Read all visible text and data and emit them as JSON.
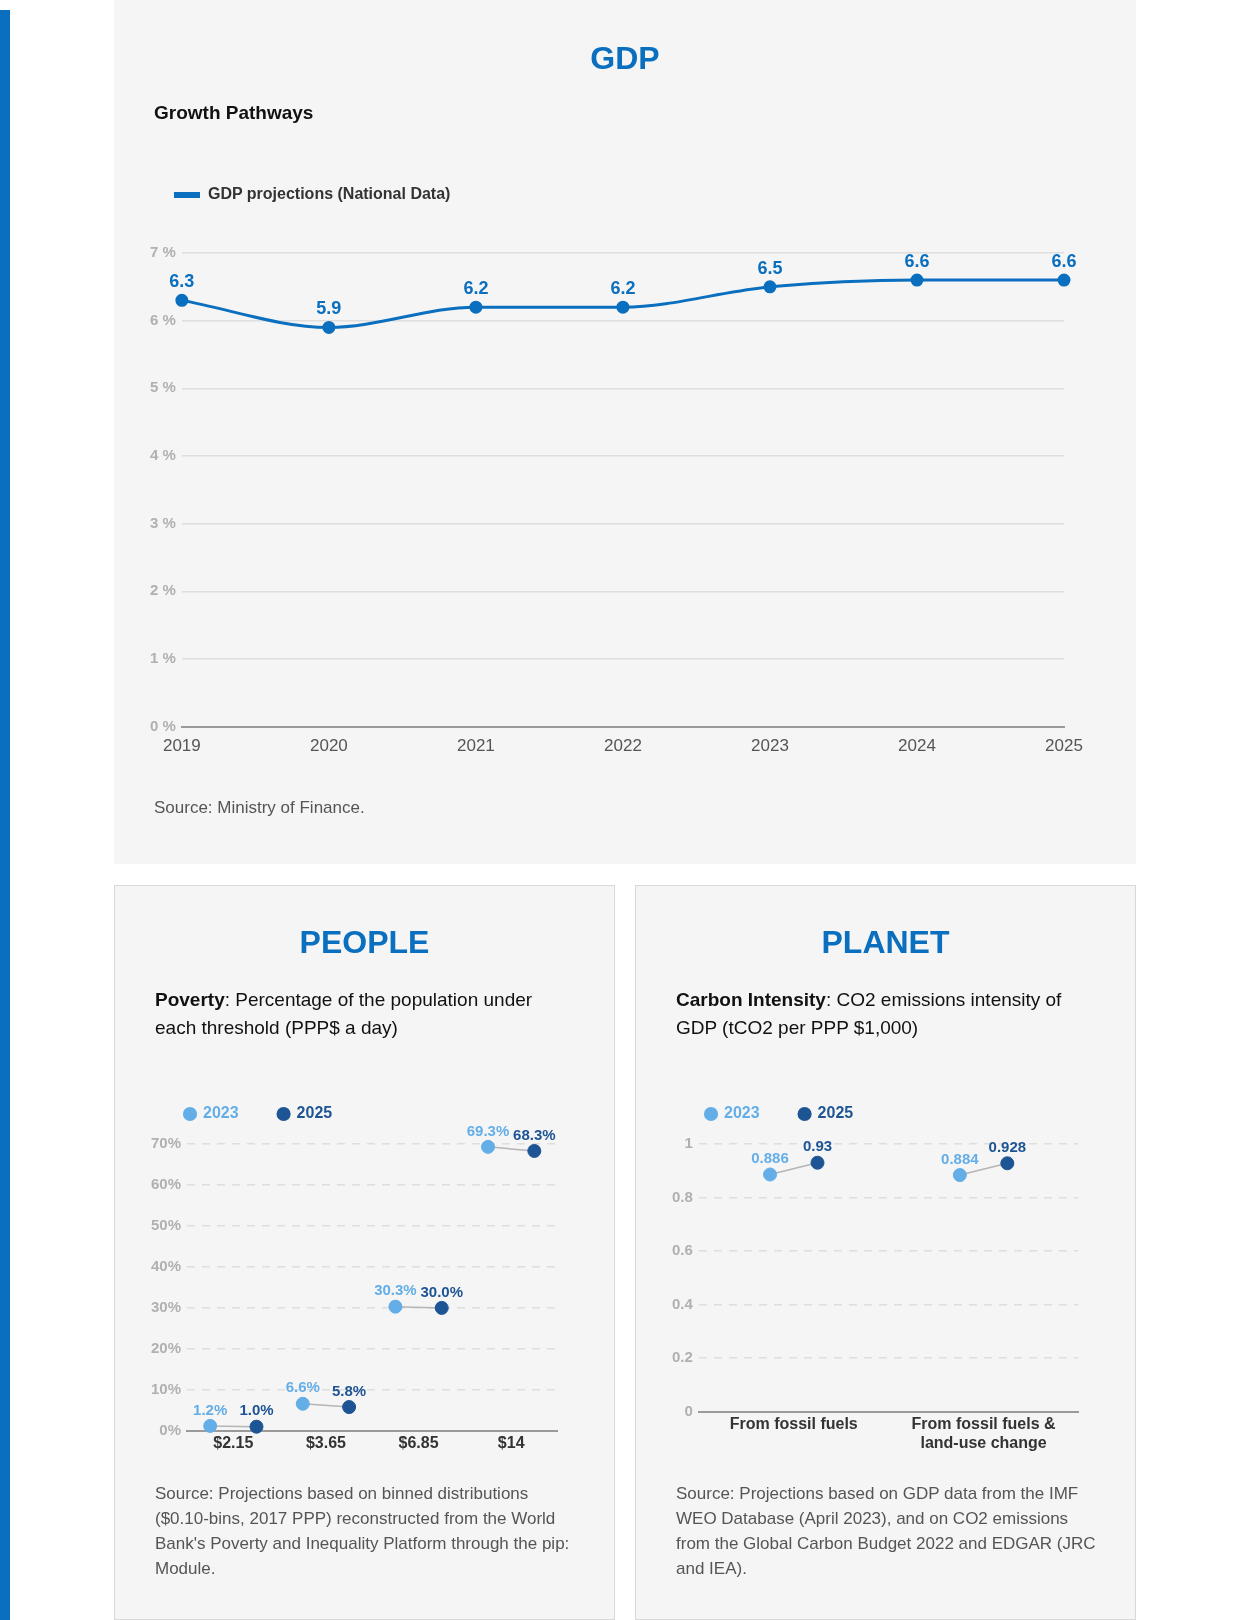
{
  "chart_data": [
    {
      "type": "line",
      "title": "GDP",
      "subtitle": "Growth Pathways",
      "categories": [
        "2019",
        "2020",
        "2021",
        "2022",
        "2023",
        "2024",
        "2025"
      ],
      "series": [
        {
          "name": "GDP projections (National Data)",
          "color": "#0a6fbf",
          "values": [
            6.3,
            5.9,
            6.2,
            6.2,
            6.5,
            6.6,
            6.6
          ]
        }
      ],
      "ylim": [
        0,
        7
      ],
      "yticks": [
        {
          "value": 0,
          "label": "0 %"
        },
        {
          "value": 1,
          "label": "1 %"
        },
        {
          "value": 2,
          "label": "2 %"
        },
        {
          "value": 3,
          "label": "3 %"
        },
        {
          "value": 4,
          "label": "4 %"
        },
        {
          "value": 5,
          "label": "5 %"
        },
        {
          "value": 6,
          "label": "6 %"
        },
        {
          "value": 7,
          "label": "7 %"
        }
      ],
      "grid": "y",
      "legend": "top left",
      "marker": "circle",
      "data_labels": true,
      "annotations": [
        "Source: Ministry of Finance."
      ]
    },
    {
      "type": "scatter",
      "title": "PEOPLE",
      "subtitle": "Poverty: Percentage of the population under each threshold (PPP$ a day)",
      "categories": [
        "$2.15",
        "$3.65",
        "$6.85",
        "$14"
      ],
      "series": [
        {
          "name": "2023",
          "color": "#64aee8",
          "values": [
            1.2,
            6.6,
            30.3,
            69.3
          ],
          "value_labels": [
            "1.2%",
            "6.6%",
            "30.3%",
            "69.3%"
          ]
        },
        {
          "name": "2025",
          "color": "#1d5494",
          "values": [
            1.0,
            5.8,
            30.0,
            68.3
          ],
          "value_labels": [
            "1.0%",
            "5.8%",
            "30.0%",
            "68.3%"
          ]
        }
      ],
      "ylim": [
        0,
        70
      ],
      "yticks": [
        {
          "value": 0,
          "label": "0%"
        },
        {
          "value": 10,
          "label": "10%"
        },
        {
          "value": 20,
          "label": "20%"
        },
        {
          "value": 30,
          "label": "30%"
        },
        {
          "value": 40,
          "label": "40%"
        },
        {
          "value": 50,
          "label": "50%"
        },
        {
          "value": 60,
          "label": "60%"
        },
        {
          "value": 70,
          "label": "70%"
        }
      ],
      "grid": "y",
      "legend": "top left",
      "marker": "circle",
      "annotations": [
        "Source: Projections based on binned distributions ($0.10-bins, 2017 PPP) reconstructed from the World Bank's Poverty and Inequality Platform through the pip: Module."
      ]
    },
    {
      "type": "scatter",
      "title": "PLANET",
      "subtitle": "Carbon Intensity: CO2 emissions intensity of GDP (tCO2 per PPP $1,000)",
      "categories": [
        "From fossil fuels",
        "From fossil fuels & land-use change"
      ],
      "series": [
        {
          "name": "2023",
          "color": "#64aee8",
          "values": [
            0.886,
            0.884
          ]
        },
        {
          "name": "2025",
          "color": "#1d5494",
          "values": [
            0.93,
            0.928
          ]
        }
      ],
      "ylim": [
        0,
        1
      ],
      "yticks": [
        0,
        0.2,
        0.4,
        0.6,
        0.8,
        1
      ],
      "grid": "y",
      "legend": "top left",
      "marker": "circle",
      "data_labels": true,
      "annotations": [
        "Source: Projections based on GDP data from the IMF WEO Database (April 2023), and on CO2 emissions from the Global Carbon Budget 2022 and EDGAR (JRC and IEA)."
      ]
    }
  ]
}
